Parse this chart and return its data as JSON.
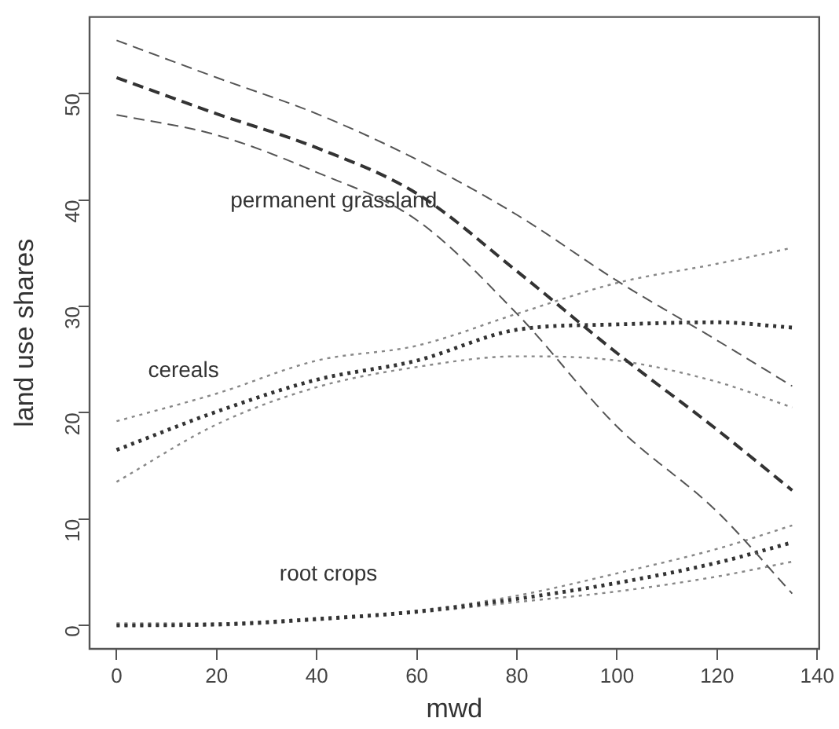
{
  "chart_data": {
    "type": "line",
    "xlabel": "mwd",
    "ylabel": "land use shares",
    "x": [
      0,
      20,
      40,
      60,
      80,
      100,
      120,
      135
    ],
    "xlim": [
      -5.4,
      140.4
    ],
    "ylim": [
      -2.2,
      57.2
    ],
    "xticks": [
      0,
      20,
      40,
      60,
      80,
      100,
      120,
      140
    ],
    "yticks": [
      0,
      10,
      20,
      30,
      40,
      50
    ],
    "grid": false,
    "legend": false,
    "marker": "none",
    "series": [
      {
        "name": "permanent grassland",
        "color": "#333333",
        "line_style": "dashed",
        "values": [
          51.5,
          48.1,
          44.9,
          40.6,
          33.3,
          25.6,
          18.4,
          12.7
        ]
      },
      {
        "color": "#555555",
        "line_style": "dashed",
        "values": [
          55,
          51.5,
          48.1,
          43.8,
          38.6,
          32.4,
          26.8,
          22.5
        ]
      },
      {
        "color": "#555555",
        "line_style": "dashed",
        "values": [
          48,
          46.1,
          42.6,
          38.1,
          29.3,
          18.7,
          10.7,
          3
        ]
      },
      {
        "name": "cereals",
        "color": "#333333",
        "line_style": "dotted",
        "values": [
          16.5,
          20.1,
          23.1,
          24.9,
          27.8,
          28.3,
          28.5,
          28
        ]
      },
      {
        "color": "#888888",
        "line_style": "dotted",
        "values": [
          19.2,
          21.8,
          24.9,
          26.3,
          29.3,
          32.2,
          34,
          35.5
        ]
      },
      {
        "color": "#888888",
        "line_style": "dotted",
        "values": [
          13.5,
          18.9,
          22.4,
          24.3,
          25.3,
          24.9,
          22.9,
          20.5
        ]
      },
      {
        "name": "root crops",
        "color": "#333333",
        "line_style": "dotted",
        "values": [
          0,
          0.1,
          0.6,
          1.3,
          2.5,
          4,
          5.9,
          7.8
        ]
      },
      {
        "color": "#888888",
        "line_style": "dotted",
        "values": [
          0.2,
          0.2,
          0.7,
          1.4,
          2.8,
          4.9,
          7.2,
          9.4
        ]
      },
      {
        "color": "#888888",
        "line_style": "dotted",
        "values": [
          0,
          0,
          0.5,
          1.2,
          2.2,
          3.2,
          4.6,
          6
        ]
      }
    ]
  }
}
